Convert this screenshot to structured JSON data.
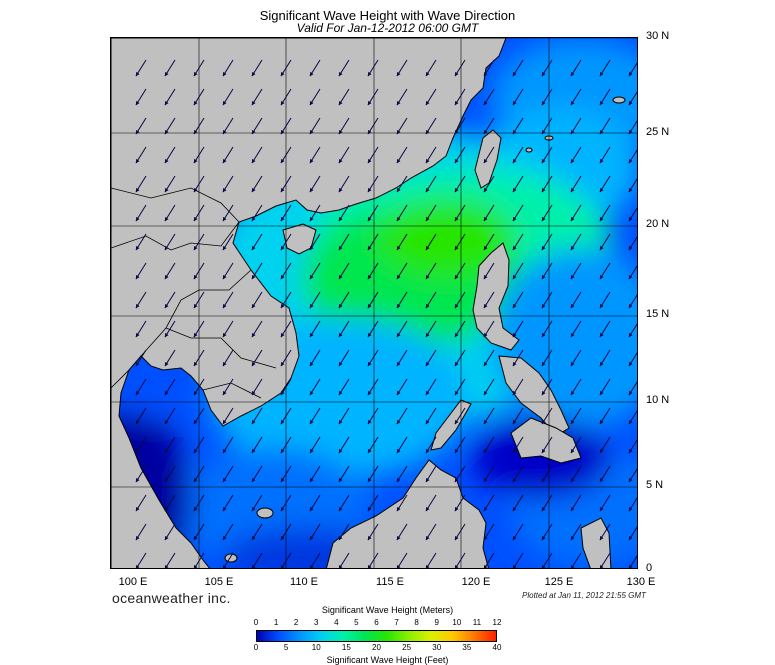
{
  "title": "Significant Wave Height with Wave Direction",
  "subtitle": "Valid For Jan-12-2012 06:00 GMT",
  "lat_labels": [
    "30 N",
    "25 N",
    "20 N",
    "15 N",
    "10 N",
    "5 N",
    "0"
  ],
  "lon_labels": [
    "100 E",
    "105 E",
    "110 E",
    "115 E",
    "120 E",
    "125 E",
    "130 E"
  ],
  "brand": "oceanweather inc.",
  "plotted_at": "Plotted at Jan 11, 2012 21:55 GMT",
  "colorbar": {
    "meters_title": "Significant Wave Height (Meters)",
    "feet_title": "Significant Wave Height (Feet)",
    "meters_ticks": [
      "0",
      "1",
      "2",
      "3",
      "4",
      "5",
      "6",
      "7",
      "8",
      "9",
      "10",
      "11",
      "12"
    ],
    "feet_ticks": [
      "0",
      "5",
      "10",
      "15",
      "20",
      "25",
      "30",
      "35",
      "40"
    ],
    "colors": [
      "#0000b4",
      "#0050ff",
      "#0096ff",
      "#00d2f0",
      "#00f0aa",
      "#00e650",
      "#28e600",
      "#8cf000",
      "#dcf000",
      "#ffc800",
      "#ff7800",
      "#ff1e00"
    ]
  },
  "colors": {
    "land": "#c0c0c0",
    "coast": "#000000",
    "grid": "#000000",
    "arrows": "#0a0a46"
  },
  "wave_direction": "toward-southwest"
}
